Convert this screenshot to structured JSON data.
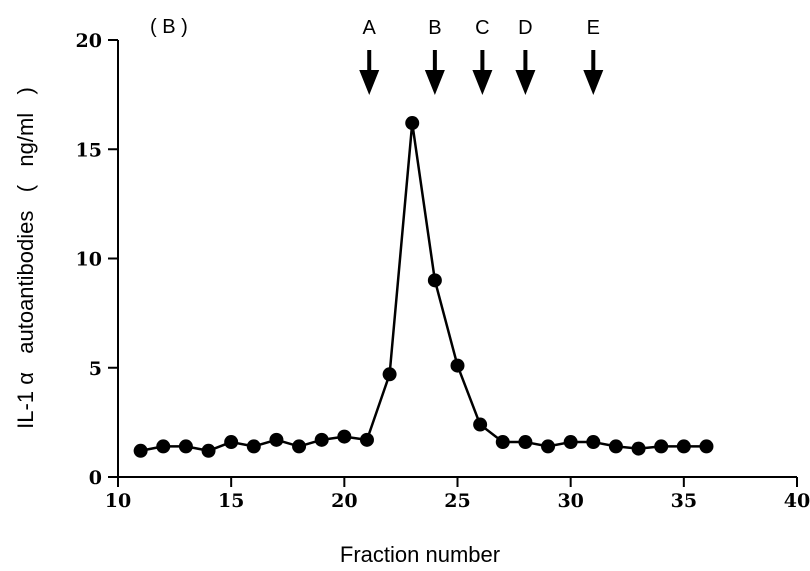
{
  "panel_label": "( B )",
  "chart_data": {
    "type": "line",
    "title": "",
    "xlabel": "Fraction number",
    "ylabel": "IL-1 α   autoantibodies   (   ng/ml   )",
    "xlim": [
      10,
      40
    ],
    "ylim": [
      0,
      20
    ],
    "x_ticks": [
      10,
      15,
      20,
      25,
      30,
      35,
      40
    ],
    "y_ticks": [
      0,
      5,
      10,
      15,
      20
    ],
    "grid": false,
    "legend": "none",
    "series": [
      {
        "x": [
          11,
          12,
          13,
          14,
          15,
          16,
          17,
          18,
          19,
          20,
          21,
          22,
          23,
          24,
          25,
          26,
          27,
          28,
          29,
          30,
          31,
          32,
          33,
          34,
          35,
          36
        ],
        "y": [
          1.2,
          1.4,
          1.4,
          1.2,
          1.6,
          1.4,
          1.7,
          1.4,
          1.7,
          1.85,
          1.7,
          4.7,
          16.2,
          9.0,
          5.1,
          2.4,
          1.6,
          1.6,
          1.4,
          1.6,
          1.6,
          1.4,
          1.3,
          1.4,
          1.4,
          1.4
        ]
      }
    ],
    "markers": [
      {
        "label": "A",
        "x": 21.1
      },
      {
        "label": "B",
        "x": 24.0
      },
      {
        "label": "C",
        "x": 26.1
      },
      {
        "label": "D",
        "x": 28.0
      },
      {
        "label": "E",
        "x": 31.0
      }
    ],
    "colors": {
      "line": "#000000",
      "point": "#000000"
    }
  }
}
